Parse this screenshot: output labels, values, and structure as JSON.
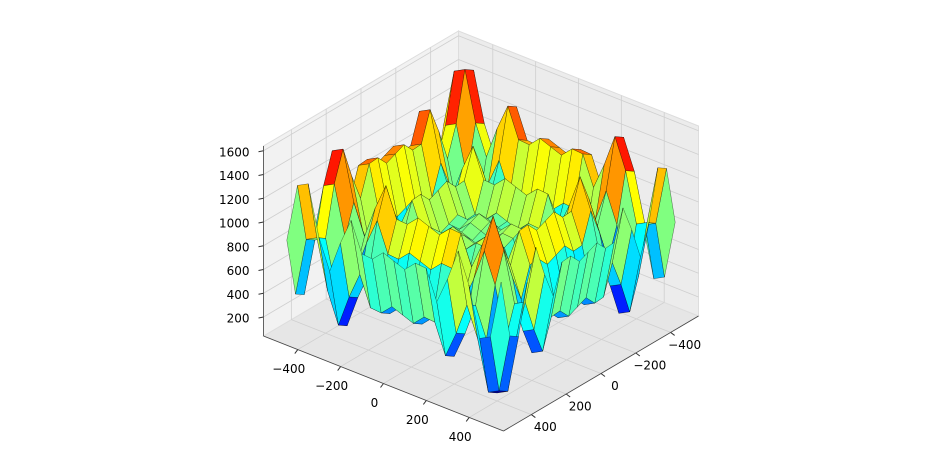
{
  "chart_data": {
    "type": "surface",
    "x": [
      -500,
      -450,
      -400,
      -350,
      -300,
      -250,
      -200,
      -150,
      -100,
      -50,
      0,
      50,
      100,
      150,
      200,
      250,
      300,
      350,
      400,
      450,
      500
    ],
    "y": [
      -500,
      -450,
      -400,
      -350,
      -300,
      -250,
      -200,
      -150,
      -100,
      -50,
      0,
      50,
      100,
      150,
      200,
      250,
      300,
      350,
      400,
      450,
      500
    ],
    "z": [
      [
        476,
        973,
        1022,
        608,
        357,
        631,
        857,
        610,
        603,
        692,
        657,
        622,
        711,
        704,
        457,
        683,
        957,
        706,
        292,
        341,
        838
      ],
      [
        973,
        1470,
        1519,
        1105,
        854,
        1128,
        1354,
        1107,
        1100,
        1189,
        1154,
        1119,
        1208,
        1201,
        954,
        1180,
        1454,
        1203,
        789,
        838,
        1335
      ],
      [
        1022,
        1519,
        1568,
        1154,
        903,
        1177,
        1403,
        1156,
        1149,
        1238,
        1203,
        1168,
        1257,
        1250,
        1003,
        1229,
        1503,
        1252,
        838,
        887,
        1384
      ],
      [
        608,
        1105,
        1154,
        740,
        489,
        763,
        989,
        742,
        735,
        824,
        789,
        754,
        843,
        836,
        589,
        815,
        1089,
        838,
        424,
        473,
        970
      ],
      [
        357,
        854,
        903,
        489,
        238,
        512,
        738,
        491,
        484,
        573,
        538,
        503,
        592,
        585,
        338,
        564,
        838,
        587,
        173,
        222,
        719
      ],
      [
        631,
        1128,
        1177,
        763,
        512,
        786,
        1012,
        765,
        758,
        847,
        812,
        777,
        866,
        859,
        612,
        838,
        1112,
        861,
        447,
        496,
        993
      ],
      [
        857,
        1354,
        1403,
        989,
        738,
        1012,
        1238,
        991,
        984,
        1073,
        1038,
        1003,
        1092,
        1085,
        838,
        1064,
        1338,
        1087,
        673,
        722,
        1219
      ],
      [
        610,
        1107,
        1156,
        742,
        491,
        765,
        991,
        744,
        737,
        826,
        791,
        756,
        845,
        838,
        591,
        817,
        1091,
        840,
        426,
        475,
        972
      ],
      [
        603,
        1100,
        1149,
        735,
        484,
        758,
        984,
        737,
        730,
        819,
        784,
        749,
        838,
        831,
        584,
        810,
        1084,
        833,
        419,
        468,
        965
      ],
      [
        692,
        1189,
        1238,
        824,
        573,
        847,
        1073,
        826,
        819,
        908,
        873,
        838,
        927,
        920,
        673,
        899,
        1173,
        922,
        508,
        557,
        1054
      ],
      [
        657,
        1154,
        1203,
        789,
        538,
        812,
        1038,
        791,
        784,
        873,
        838,
        803,
        892,
        885,
        638,
        864,
        1138,
        887,
        473,
        522,
        1019
      ],
      [
        622,
        1119,
        1168,
        754,
        503,
        777,
        1003,
        756,
        749,
        838,
        803,
        768,
        857,
        850,
        603,
        829,
        1103,
        852,
        438,
        487,
        984
      ],
      [
        711,
        1208,
        1257,
        843,
        592,
        866,
        1092,
        845,
        838,
        927,
        892,
        857,
        946,
        939,
        692,
        918,
        1192,
        941,
        527,
        576,
        1073
      ],
      [
        704,
        1201,
        1250,
        836,
        585,
        859,
        1085,
        838,
        831,
        920,
        885,
        850,
        939,
        932,
        685,
        911,
        1185,
        934,
        520,
        569,
        1066
      ],
      [
        457,
        954,
        1003,
        589,
        338,
        612,
        838,
        591,
        584,
        673,
        638,
        603,
        692,
        685,
        438,
        664,
        938,
        687,
        273,
        322,
        819
      ],
      [
        683,
        1180,
        1229,
        815,
        564,
        838,
        1064,
        817,
        810,
        899,
        864,
        829,
        918,
        911,
        664,
        890,
        1164,
        913,
        499,
        548,
        1045
      ],
      [
        957,
        1454,
        1503,
        1089,
        838,
        1112,
        1338,
        1091,
        1084,
        1173,
        1138,
        1103,
        1192,
        1185,
        938,
        1164,
        1438,
        1187,
        773,
        822,
        1319
      ],
      [
        706,
        1203,
        1252,
        838,
        587,
        861,
        1087,
        840,
        833,
        922,
        887,
        852,
        941,
        934,
        687,
        913,
        1187,
        936,
        522,
        571,
        1068
      ],
      [
        292,
        789,
        838,
        424,
        173,
        447,
        673,
        426,
        419,
        508,
        473,
        438,
        527,
        520,
        273,
        499,
        773,
        522,
        108,
        157,
        654
      ],
      [
        341,
        838,
        887,
        473,
        222,
        496,
        722,
        475,
        468,
        557,
        522,
        487,
        576,
        569,
        322,
        548,
        822,
        571,
        157,
        206,
        703
      ],
      [
        838,
        1335,
        1384,
        970,
        719,
        993,
        1219,
        972,
        965,
        1054,
        1019,
        984,
        1073,
        1066,
        819,
        1045,
        1319,
        1068,
        654,
        703,
        1200
      ]
    ],
    "xlim": [
      -560,
      560
    ],
    "ylim": [
      -560,
      560
    ],
    "zlim": [
      40,
      1640
    ],
    "xticks": [
      {
        "value": -400,
        "label": "−400"
      },
      {
        "value": -200,
        "label": "−200"
      },
      0,
      200,
      400
    ],
    "yticks": [
      {
        "value": -400,
        "label": "−400"
      },
      {
        "value": -200,
        "label": "−200"
      },
      0,
      200,
      400
    ],
    "zticks": [
      200,
      400,
      600,
      800,
      1000,
      1200,
      1400,
      1600
    ],
    "colormap": "jet",
    "grid": true
  }
}
